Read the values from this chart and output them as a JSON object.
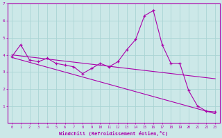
{
  "xlabel": "Windchill (Refroidissement éolien,°C)",
  "bg_color": "#cce8e8",
  "line_color": "#aa00aa",
  "grid_color": "#aad4d4",
  "x_data": [
    0,
    1,
    2,
    3,
    4,
    5,
    6,
    7,
    8,
    9,
    10,
    11,
    12,
    13,
    14,
    15,
    16,
    17,
    18,
    19,
    20,
    21,
    22,
    23
  ],
  "y_data": [
    3.9,
    4.6,
    3.7,
    3.6,
    3.8,
    3.5,
    3.4,
    3.3,
    2.9,
    3.2,
    3.5,
    3.3,
    3.6,
    4.3,
    4.9,
    6.3,
    6.6,
    4.6,
    3.5,
    3.5,
    1.9,
    1.0,
    0.7,
    0.65
  ],
  "ylim": [
    0,
    7
  ],
  "yticks": [
    1,
    2,
    3,
    4,
    5,
    6,
    7
  ],
  "xlim": [
    -0.5,
    23.5
  ],
  "trend1_x": [
    0,
    23
  ],
  "trend1_y": [
    4.0,
    2.6
  ],
  "trend2_x": [
    0,
    23
  ],
  "trend2_y": [
    3.85,
    0.55
  ]
}
